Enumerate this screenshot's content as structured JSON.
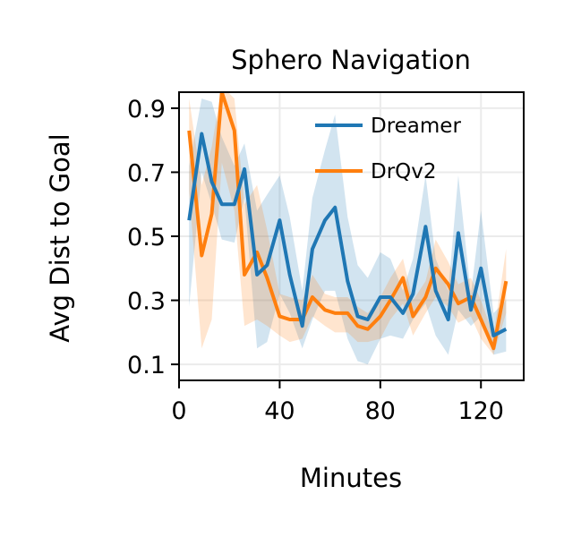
{
  "chart_data": {
    "type": "line",
    "title": "Sphero Navigation",
    "xlabel": "Minutes",
    "ylabel": "Avg Dist to Goal",
    "xlim": [
      0,
      137
    ],
    "ylim": [
      0.05,
      0.95
    ],
    "xticks": [
      0,
      40,
      80,
      120
    ],
    "yticks": [
      0.1,
      0.3,
      0.5,
      0.7,
      0.9
    ],
    "grid": true,
    "legend_position": "top-right",
    "series": [
      {
        "name": "Dreamer",
        "color": "#1f77b4",
        "x": [
          4,
          9,
          13,
          17,
          22,
          26,
          31,
          35,
          40,
          44,
          49,
          53,
          58,
          62,
          67,
          71,
          75,
          80,
          84,
          89,
          93,
          98,
          102,
          107,
          111,
          116,
          120,
          125,
          130
        ],
        "y": [
          0.55,
          0.82,
          0.67,
          0.6,
          0.6,
          0.71,
          0.38,
          0.41,
          0.55,
          0.38,
          0.22,
          0.46,
          0.55,
          0.59,
          0.36,
          0.25,
          0.24,
          0.31,
          0.31,
          0.26,
          0.32,
          0.53,
          0.33,
          0.24,
          0.51,
          0.27,
          0.4,
          0.19,
          0.21
        ],
        "lower": [
          0.28,
          0.7,
          0.6,
          0.49,
          0.48,
          0.62,
          0.15,
          0.17,
          0.32,
          0.26,
          0.15,
          0.24,
          0.33,
          0.33,
          0.18,
          0.11,
          0.1,
          0.18,
          0.19,
          0.18,
          0.24,
          0.29,
          0.19,
          0.13,
          0.27,
          0.22,
          0.25,
          0.13,
          0.14
        ],
        "upper": [
          0.72,
          0.93,
          0.92,
          0.81,
          0.72,
          0.79,
          0.58,
          0.63,
          0.69,
          0.56,
          0.33,
          0.62,
          0.77,
          0.88,
          0.56,
          0.41,
          0.37,
          0.45,
          0.43,
          0.33,
          0.43,
          0.69,
          0.43,
          0.33,
          0.69,
          0.32,
          0.58,
          0.26,
          0.3
        ]
      },
      {
        "name": "DrQv2",
        "color": "#ff7f0e",
        "x": [
          4,
          9,
          13,
          17,
          22,
          26,
          31,
          35,
          40,
          44,
          49,
          53,
          58,
          62,
          67,
          71,
          75,
          80,
          84,
          89,
          93,
          98,
          102,
          107,
          111,
          116,
          120,
          125,
          130
        ],
        "y": [
          0.83,
          0.44,
          0.57,
          0.95,
          0.83,
          0.38,
          0.45,
          0.37,
          0.25,
          0.24,
          0.24,
          0.31,
          0.27,
          0.26,
          0.26,
          0.22,
          0.21,
          0.25,
          0.3,
          0.37,
          0.25,
          0.31,
          0.4,
          0.35,
          0.29,
          0.31,
          0.24,
          0.15,
          0.36
        ],
        "lower": [
          0.64,
          0.15,
          0.24,
          0.73,
          0.58,
          0.22,
          0.24,
          0.22,
          0.19,
          0.17,
          0.18,
          0.25,
          0.22,
          0.2,
          0.2,
          0.17,
          0.17,
          0.18,
          0.24,
          0.29,
          0.19,
          0.26,
          0.31,
          0.28,
          0.23,
          0.25,
          0.18,
          0.13,
          0.26
        ],
        "upper": [
          0.93,
          0.66,
          0.78,
          0.97,
          0.93,
          0.6,
          0.66,
          0.52,
          0.32,
          0.31,
          0.3,
          0.38,
          0.32,
          0.31,
          0.31,
          0.28,
          0.26,
          0.31,
          0.37,
          0.43,
          0.3,
          0.36,
          0.49,
          0.42,
          0.35,
          0.37,
          0.3,
          0.19,
          0.46
        ]
      }
    ]
  }
}
